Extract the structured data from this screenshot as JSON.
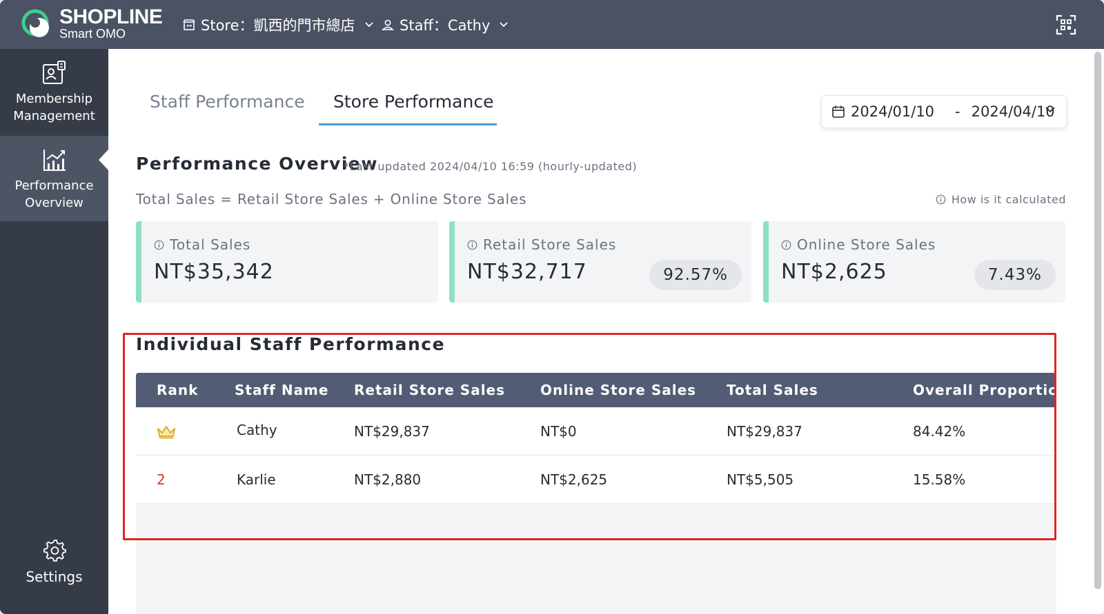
{
  "header": {
    "logo_text": "SHOPLINE",
    "logo_sub": "Smart OMO",
    "store_select": "Store：凱西的門市總店",
    "staff_select": "Staff：Cathy"
  },
  "sidebar": {
    "items": [
      {
        "label": "Membership\nManagement",
        "label_line1": "Membership",
        "label_line2": "Management",
        "icon": "membership-icon"
      },
      {
        "label_line1": "Performance",
        "label_line2": "Overview",
        "icon": "chart-icon",
        "active": true
      },
      {
        "label": "Settings",
        "icon": "gear-icon"
      }
    ]
  },
  "tabs": [
    {
      "label": "Staff Performance"
    },
    {
      "label": "Store Performance",
      "active": true
    }
  ],
  "date_range": {
    "start": "2024/01/10",
    "separator": "-",
    "end": "2024/04/10"
  },
  "overview": {
    "title": "Performance Overview",
    "updated": "*Last updated 2024/04/10 16:59 (hourly-updated)",
    "formula": "Total Sales = Retail Store Sales + Online Store Sales",
    "how_calc": "How is it calculated"
  },
  "cards": [
    {
      "label": "Total Sales",
      "value": "NT$35,342",
      "pct": ""
    },
    {
      "label": "Retail Store Sales",
      "value": "NT$32,717",
      "pct": "92.57%"
    },
    {
      "label": "Online Store Sales",
      "value": "NT$2,625",
      "pct": "7.43%"
    }
  ],
  "staff_table": {
    "title": "Individual Staff Performance",
    "headers": [
      "Rank",
      "Staff Name",
      "Retail Store Sales",
      "Online Store Sales",
      "Total Sales",
      "Overall Proportion"
    ],
    "rows": [
      {
        "rank": "",
        "rank_icon": "crown-icon",
        "name": "Cathy",
        "retail": "NT$29,837",
        "online": "NT$0",
        "total": "NT$29,837",
        "proportion": "84.42%"
      },
      {
        "rank": "2",
        "name": "Karlie",
        "retail": "NT$2,880",
        "online": "NT$2,625",
        "total": "NT$5,505",
        "proportion": "15.58%"
      }
    ]
  },
  "colors": {
    "topbar": "#4a5263",
    "sidebar": "#353c48",
    "sidebar_active": "#4d5565",
    "accent_tab": "#4a9bd6",
    "card_accent": "#8ee0c2",
    "table_header": "#525c75",
    "highlight": "#e02424",
    "rank_red": "#d63a2a"
  }
}
